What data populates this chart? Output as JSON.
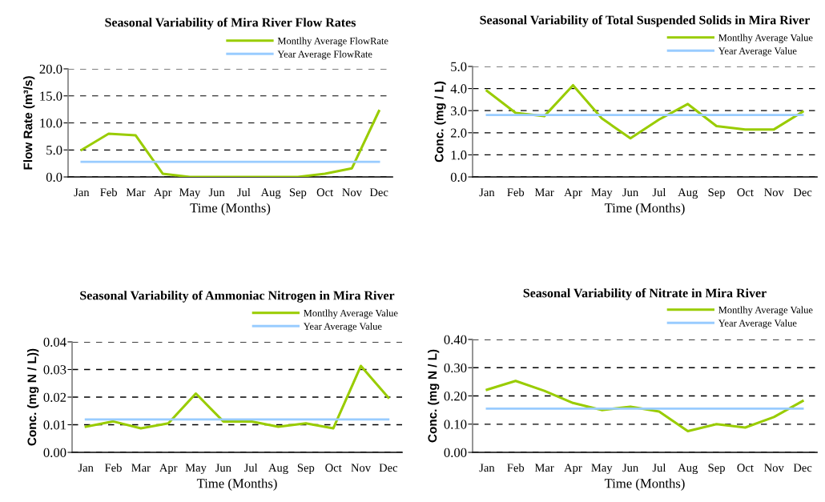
{
  "chart_data": [
    {
      "type": "line",
      "title": "Seasonal Variability of Mira River Flow Rates",
      "xlabel": "Time (Months)",
      "ylabel": "Flow Rate (m³/s)",
      "categories": [
        "Jan",
        "Feb",
        "Mar",
        "Apr",
        "May",
        "Jun",
        "Jul",
        "Aug",
        "Sep",
        "Oct",
        "Nov",
        "Dec"
      ],
      "series": [
        {
          "name": "Montlhy Average FlowRate",
          "color": "#99cc00",
          "values": [
            5.0,
            8.0,
            7.7,
            0.6,
            0.0,
            0.0,
            0.0,
            0.0,
            0.0,
            0.6,
            1.6,
            12.2
          ]
        },
        {
          "name": "Year Average FlowRate",
          "color": "#99ccff",
          "values": [
            2.8,
            2.8,
            2.8,
            2.8,
            2.8,
            2.8,
            2.8,
            2.8,
            2.8,
            2.8,
            2.8,
            2.8
          ]
        }
      ],
      "ylim": [
        0,
        20
      ],
      "yticks": [
        {
          "value": 0,
          "label": "0.0"
        },
        {
          "value": 5,
          "label": "5.0"
        },
        {
          "value": 10,
          "label": "10.0"
        },
        {
          "value": 15,
          "label": "15.0"
        },
        {
          "value": 20,
          "label": "20.0"
        }
      ],
      "grid": "y",
      "legend": "top right",
      "marker": "none",
      "line_style": "solid"
    },
    {
      "type": "line",
      "title": "Seasonal Variability of Total Suspended Solids in Mira River",
      "xlabel": "Time (Months)",
      "ylabel": "Conc. (mg / L)",
      "categories": [
        "Jan",
        "Feb",
        "Mar",
        "Apr",
        "May",
        "Jun",
        "Jul",
        "Aug",
        "Sep",
        "Oct",
        "Nov",
        "Dec"
      ],
      "series": [
        {
          "name": "Montlhy Average Value",
          "color": "#99cc00",
          "values": [
            3.9,
            2.9,
            2.75,
            4.15,
            2.65,
            1.75,
            2.6,
            3.3,
            2.3,
            2.15,
            2.15,
            2.95
          ]
        },
        {
          "name": "Year Average Value",
          "color": "#99ccff",
          "values": [
            2.8,
            2.8,
            2.8,
            2.8,
            2.8,
            2.8,
            2.8,
            2.8,
            2.8,
            2.8,
            2.8,
            2.8
          ]
        }
      ],
      "ylim": [
        0,
        5
      ],
      "yticks": [
        {
          "value": 0,
          "label": "0.0"
        },
        {
          "value": 1,
          "label": "1.0"
        },
        {
          "value": 2,
          "label": "2.0"
        },
        {
          "value": 3,
          "label": "3.0"
        },
        {
          "value": 4,
          "label": "4.0"
        },
        {
          "value": 5,
          "label": "5.0"
        }
      ],
      "grid": "y",
      "legend": "top right",
      "marker": "none",
      "line_style": "solid"
    },
    {
      "type": "line",
      "title": "Seasonal Variability of Ammoniac Nitrogen in Mira River",
      "xlabel": "Time (Months)",
      "ylabel": "Conc. (mg N / L))",
      "categories": [
        "Jan",
        "Feb",
        "Mar",
        "Apr",
        "May",
        "Jun",
        "Jul",
        "Aug",
        "Sep",
        "Oct",
        "Nov",
        "Dec"
      ],
      "series": [
        {
          "name": "Montlhy Average Value",
          "color": "#99cc00",
          "values": [
            0.0093,
            0.0112,
            0.0087,
            0.0105,
            0.0213,
            0.0112,
            0.0112,
            0.0093,
            0.0105,
            0.0087,
            0.0313,
            0.0198
          ]
        },
        {
          "name": "Year Average Value",
          "color": "#99ccff",
          "values": [
            0.0119,
            0.0119,
            0.0119,
            0.0119,
            0.0119,
            0.0119,
            0.0119,
            0.0119,
            0.0119,
            0.0119,
            0.0119,
            0.0119
          ]
        }
      ],
      "ylim": [
        0,
        0.04
      ],
      "yticks": [
        {
          "value": 0,
          "label": "0.00"
        },
        {
          "value": 0.01,
          "label": "0.01"
        },
        {
          "value": 0.02,
          "label": "0.02"
        },
        {
          "value": 0.03,
          "label": "0.03"
        },
        {
          "value": 0.04,
          "label": "0.04"
        }
      ],
      "grid": "y",
      "legend": "top right",
      "marker": "none",
      "line_style": "solid"
    },
    {
      "type": "line",
      "title": "Seasonal Variability of Nitrate in Mira River",
      "xlabel": "Time (Months)",
      "ylabel": "Conc. (mg N / L)",
      "categories": [
        "Jan",
        "Feb",
        "Mar",
        "Apr",
        "May",
        "Jun",
        "Jul",
        "Aug",
        "Sep",
        "Oct",
        "Nov",
        "Dec"
      ],
      "series": [
        {
          "name": "Montlhy Average Value",
          "color": "#99cc00",
          "values": [
            0.222,
            0.253,
            0.218,
            0.175,
            0.15,
            0.162,
            0.145,
            0.075,
            0.1,
            0.088,
            0.125,
            0.182
          ]
        },
        {
          "name": "Year Average Value",
          "color": "#99ccff",
          "values": [
            0.155,
            0.155,
            0.155,
            0.155,
            0.155,
            0.155,
            0.155,
            0.155,
            0.155,
            0.155,
            0.155,
            0.155
          ]
        }
      ],
      "ylim": [
        0,
        0.4
      ],
      "yticks": [
        {
          "value": 0,
          "label": "0.00"
        },
        {
          "value": 0.1,
          "label": "0.10"
        },
        {
          "value": 0.2,
          "label": "0.20"
        },
        {
          "value": 0.3,
          "label": "0.30"
        },
        {
          "value": 0.4,
          "label": "0.40"
        }
      ],
      "grid": "y",
      "legend": "top right",
      "marker": "none",
      "line_style": "solid"
    }
  ]
}
